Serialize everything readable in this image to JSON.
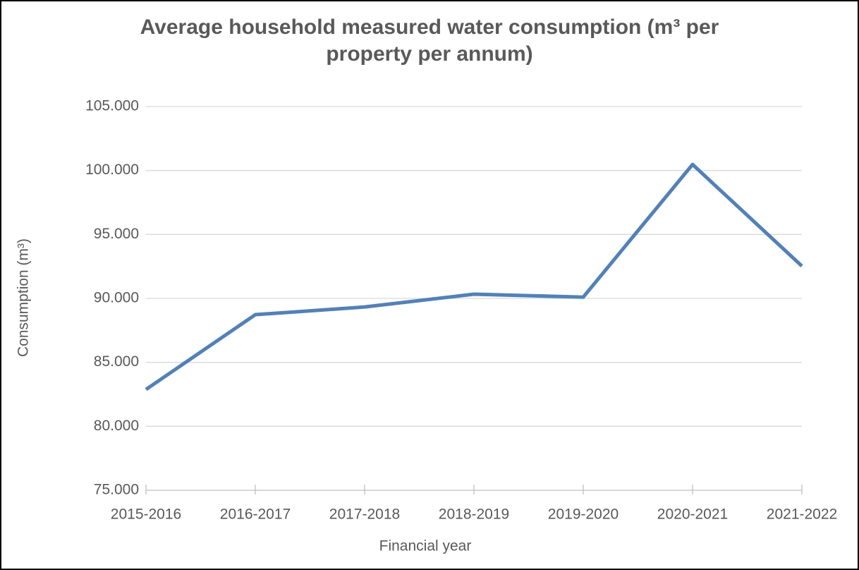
{
  "chart_data": {
    "type": "line",
    "title": "Average household measured water consumption (m³ per property per annum)",
    "x_label": "Financial year",
    "y_label": "Consumption (m³)",
    "categories": [
      "2015-2016",
      "2016-2017",
      "2017-2018",
      "2018-2019",
      "2019-2020",
      "2020-2021",
      "2021-2022"
    ],
    "series": [
      {
        "name": "Consumption",
        "color": "#4f81bd",
        "values": [
          82.88,
          88.73,
          89.33,
          90.33,
          90.1,
          100.47,
          92.53
        ]
      }
    ],
    "ylim": [
      75,
      105
    ],
    "yticks": [
      {
        "value": 75,
        "label": "75.000"
      },
      {
        "value": 80,
        "label": "80.000"
      },
      {
        "value": 85,
        "label": "85.000"
      },
      {
        "value": 90,
        "label": "90.000"
      },
      {
        "value": 95,
        "label": "95.000"
      },
      {
        "value": 100,
        "label": "100.000"
      },
      {
        "value": 105,
        "label": "105.000"
      }
    ],
    "grid": true
  }
}
